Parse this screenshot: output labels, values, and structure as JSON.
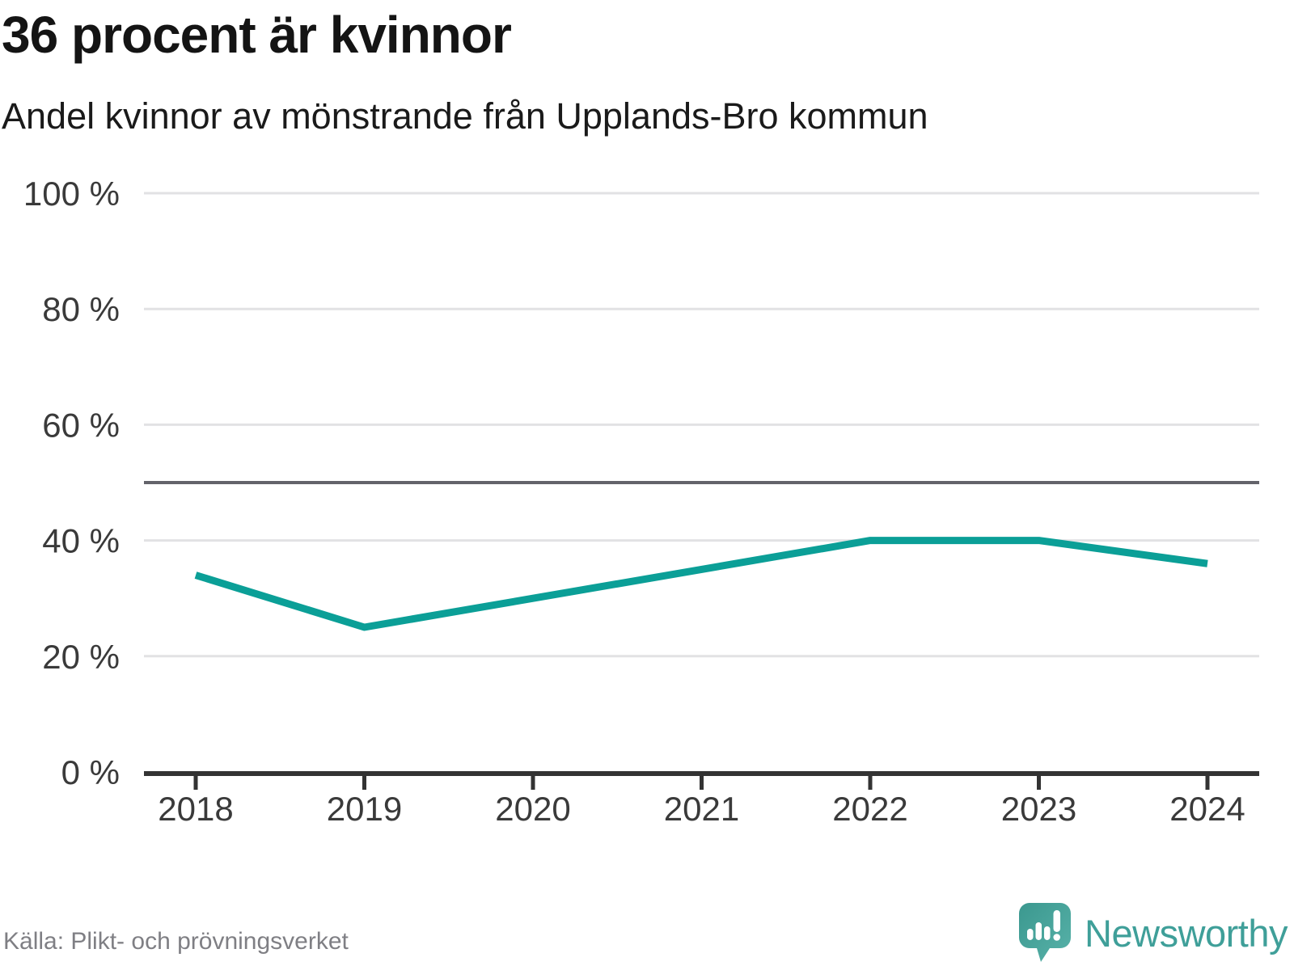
{
  "header": {
    "title": "36 procent är kvinnor",
    "subtitle": "Andel kvinnor av mönstrande från Upplands-Bro kommun"
  },
  "chart_data": {
    "type": "line",
    "title": "36 procent är kvinnor",
    "subtitle": "Andel kvinnor av mönstrande från Upplands-Bro kommun",
    "x": [
      2018,
      2019,
      2020,
      2021,
      2022,
      2023,
      2024
    ],
    "xticks": [
      "2018",
      "2019",
      "2020",
      "2021",
      "2022",
      "2023",
      "2024"
    ],
    "series": [
      {
        "name": "Andel kvinnor av mönstrande",
        "values": [
          34,
          25,
          30,
          35,
          40,
          40,
          36
        ],
        "color": "#0b9f97"
      }
    ],
    "ylim": [
      0,
      100
    ],
    "yticks": [
      {
        "value": 0,
        "label": "0 %"
      },
      {
        "value": 20,
        "label": "20 %"
      },
      {
        "value": 40,
        "label": "40 %"
      },
      {
        "value": 60,
        "label": "60 %"
      },
      {
        "value": 80,
        "label": "80 %"
      },
      {
        "value": 100,
        "label": "100 %"
      }
    ],
    "reference_line": {
      "value": 50,
      "color": "#63636a"
    },
    "grid": "horizontal",
    "grid_color": "#e2e2e4",
    "axis_color": "#333333",
    "legend_position": "none"
  },
  "footer": {
    "source": "Källa: Plikt- och prövningsverket",
    "brand": {
      "name": "Newsworthy",
      "icon": "newsworthy-logo-icon",
      "color": "#3f9f99",
      "icon_color": "#47a49c"
    }
  }
}
